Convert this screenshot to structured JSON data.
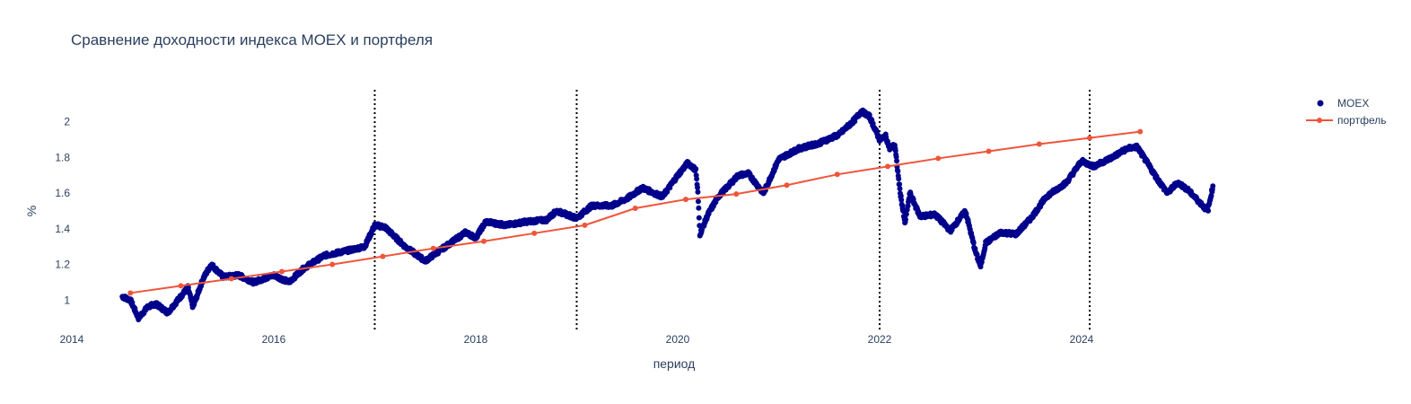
{
  "chart_data": {
    "type": "scatter",
    "title": "Сравнение доходности индекса MOEX и портфеля",
    "xlabel": "период",
    "ylabel": "%",
    "xlim": [
      2014.0,
      2026.0
    ],
    "ylim": [
      0.82,
      2.18
    ],
    "x_ticks": [
      2014,
      2016,
      2018,
      2020,
      2022,
      2024
    ],
    "y_ticks": [
      1,
      1.2,
      1.4,
      1.6,
      1.8,
      2
    ],
    "grid": false,
    "legend_position": "top-right",
    "vlines": [
      2017.0,
      2019.0,
      2022.0,
      2024.08
    ],
    "series": [
      {
        "name": "MOEX",
        "mode": "markers",
        "color": "#00008b",
        "keypoints": [
          [
            2014.5,
            1.02
          ],
          [
            2014.58,
            1.0
          ],
          [
            2014.66,
            0.9
          ],
          [
            2014.75,
            0.96
          ],
          [
            2014.83,
            0.98
          ],
          [
            2014.95,
            0.93
          ],
          [
            2015.05,
            1.0
          ],
          [
            2015.15,
            1.07
          ],
          [
            2015.2,
            0.96
          ],
          [
            2015.3,
            1.12
          ],
          [
            2015.38,
            1.2
          ],
          [
            2015.5,
            1.13
          ],
          [
            2015.65,
            1.14
          ],
          [
            2015.8,
            1.1
          ],
          [
            2016.0,
            1.14
          ],
          [
            2016.15,
            1.1
          ],
          [
            2016.3,
            1.18
          ],
          [
            2016.5,
            1.25
          ],
          [
            2016.75,
            1.28
          ],
          [
            2016.9,
            1.3
          ],
          [
            2017.0,
            1.42
          ],
          [
            2017.1,
            1.41
          ],
          [
            2017.3,
            1.3
          ],
          [
            2017.5,
            1.22
          ],
          [
            2017.7,
            1.3
          ],
          [
            2017.9,
            1.38
          ],
          [
            2018.0,
            1.35
          ],
          [
            2018.1,
            1.44
          ],
          [
            2018.3,
            1.42
          ],
          [
            2018.5,
            1.44
          ],
          [
            2018.7,
            1.45
          ],
          [
            2018.8,
            1.5
          ],
          [
            2019.0,
            1.46
          ],
          [
            2019.15,
            1.53
          ],
          [
            2019.35,
            1.53
          ],
          [
            2019.5,
            1.57
          ],
          [
            2019.65,
            1.63
          ],
          [
            2019.85,
            1.58
          ],
          [
            2020.0,
            1.7
          ],
          [
            2020.1,
            1.77
          ],
          [
            2020.18,
            1.73
          ],
          [
            2020.2,
            1.6
          ],
          [
            2020.22,
            1.37
          ],
          [
            2020.3,
            1.48
          ],
          [
            2020.4,
            1.58
          ],
          [
            2020.6,
            1.7
          ],
          [
            2020.7,
            1.71
          ],
          [
            2020.85,
            1.6
          ],
          [
            2021.0,
            1.79
          ],
          [
            2021.2,
            1.85
          ],
          [
            2021.4,
            1.88
          ],
          [
            2021.6,
            1.93
          ],
          [
            2021.75,
            2.01
          ],
          [
            2021.82,
            2.06
          ],
          [
            2021.9,
            2.03
          ],
          [
            2022.0,
            1.9
          ],
          [
            2022.06,
            1.92
          ],
          [
            2022.1,
            1.85
          ],
          [
            2022.15,
            1.87
          ],
          [
            2022.2,
            1.62
          ],
          [
            2022.25,
            1.43
          ],
          [
            2022.3,
            1.6
          ],
          [
            2022.4,
            1.47
          ],
          [
            2022.55,
            1.48
          ],
          [
            2022.7,
            1.39
          ],
          [
            2022.85,
            1.5
          ],
          [
            2022.95,
            1.27
          ],
          [
            2023.0,
            1.19
          ],
          [
            2023.05,
            1.32
          ],
          [
            2023.2,
            1.38
          ],
          [
            2023.35,
            1.37
          ],
          [
            2023.5,
            1.46
          ],
          [
            2023.65,
            1.58
          ],
          [
            2023.85,
            1.66
          ],
          [
            2024.0,
            1.78
          ],
          [
            2024.12,
            1.75
          ],
          [
            2024.3,
            1.8
          ],
          [
            2024.45,
            1.85
          ],
          [
            2024.55,
            1.86
          ],
          [
            2024.65,
            1.77
          ],
          [
            2024.75,
            1.68
          ],
          [
            2024.85,
            1.6
          ],
          [
            2024.95,
            1.66
          ],
          [
            2025.05,
            1.62
          ],
          [
            2025.15,
            1.56
          ],
          [
            2025.25,
            1.5
          ],
          [
            2025.3,
            1.64
          ]
        ]
      },
      {
        "name": "портфель",
        "mode": "lines+markers",
        "color": "#ef553b",
        "x": [
          2014.58,
          2015.08,
          2015.58,
          2016.08,
          2016.58,
          2017.08,
          2017.58,
          2018.08,
          2018.58,
          2019.08,
          2019.58,
          2020.08,
          2020.58,
          2021.08,
          2021.58,
          2022.08,
          2022.58,
          2023.08,
          2023.58,
          2024.08,
          2024.58
        ],
        "y": [
          1.04,
          1.08,
          1.12,
          1.16,
          1.2,
          1.245,
          1.29,
          1.33,
          1.375,
          1.42,
          1.515,
          1.565,
          1.595,
          1.645,
          1.705,
          1.75,
          1.795,
          1.835,
          1.875,
          1.91,
          1.945
        ]
      }
    ]
  }
}
